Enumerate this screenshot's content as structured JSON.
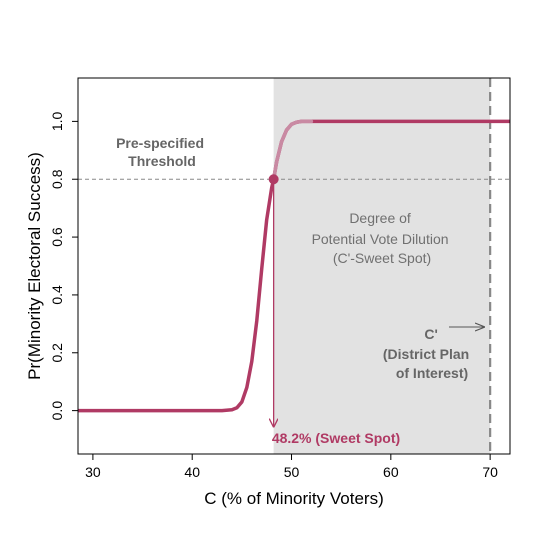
{
  "chart_data": {
    "type": "line",
    "xlabel": "C (% of Minority Voters)",
    "ylabel": "Pr(Minority Electoral Success)",
    "xlim": [
      28.5,
      72
    ],
    "ylim": [
      -0.15,
      1.15
    ],
    "x_ticks": [
      30,
      40,
      50,
      60,
      70
    ],
    "y_ticks": [
      0.0,
      0.2,
      0.4,
      0.6,
      0.8,
      1.0
    ],
    "x_tick_labels": [
      "30",
      "40",
      "50",
      "60",
      "70"
    ],
    "y_tick_labels": [
      "0.0",
      "0.2",
      "0.4",
      "0.6",
      "0.8",
      "1.0"
    ],
    "grid": false,
    "curve": {
      "x": [
        28.5,
        43.0,
        44.0,
        44.5,
        45.0,
        45.5,
        46.0,
        46.5,
        47.0,
        47.5,
        48.0,
        48.2,
        48.5,
        49.0,
        49.5,
        50.0,
        50.5,
        51.0,
        52.0,
        72.0
      ],
      "y": [
        0.0,
        0.0,
        0.003,
        0.01,
        0.03,
        0.08,
        0.17,
        0.31,
        0.49,
        0.66,
        0.77,
        0.8,
        0.86,
        0.93,
        0.97,
        0.99,
        0.997,
        1.0,
        1.0,
        1.0
      ],
      "color": "#b03a64",
      "faded_color": "#c98aa3"
    },
    "threshold": {
      "y": 0.8
    },
    "sweet_spot": {
      "x": 48.2,
      "y": 0.8,
      "label": "48.2% (Sweet Spot)"
    },
    "district_plan": {
      "x": 70
    },
    "shaded_region": {
      "x_from": 48.2,
      "x_to": 70,
      "color": "#e2e2e2"
    },
    "annotations": {
      "threshold_label": [
        "Pre-specified",
        "Threshold"
      ],
      "dilution_label": [
        "Degree of",
        "Potential Vote Dilution",
        "(C'-Sweet Spot)"
      ],
      "district_label": [
        "C'",
        "(District Plan",
        "of Interest)"
      ]
    },
    "colors": {
      "accent": "#b03a64",
      "annotation_dark": "#666666",
      "annotation_light": "#707070",
      "dashed_line": "#888888"
    }
  }
}
